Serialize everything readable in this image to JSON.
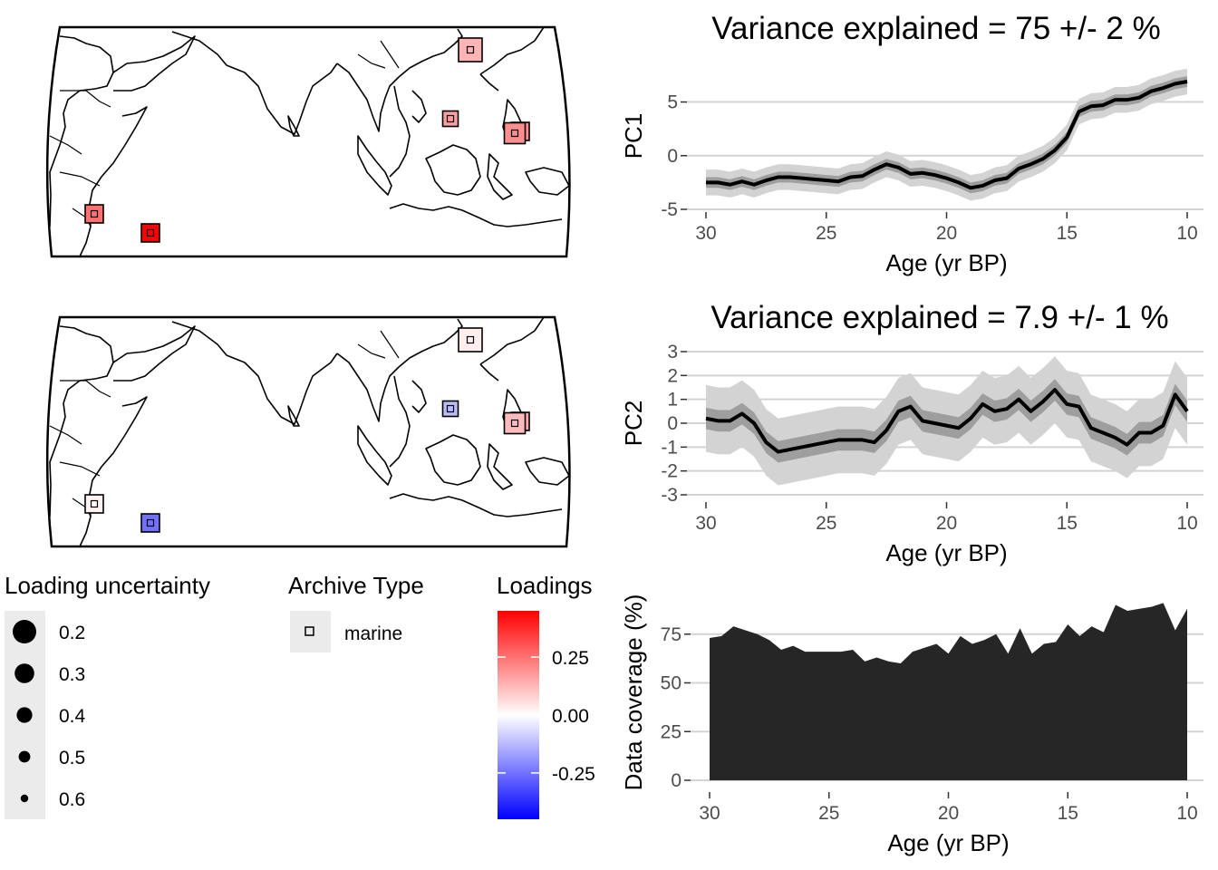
{
  "maps": [
    {
      "name": "pc1-loadings-map"
    },
    {
      "name": "pc2-loadings-map"
    }
  ],
  "chart_data": [
    {
      "type": "area",
      "chart": "pc1",
      "title": "Variance explained = 75 +/- 2 %",
      "xlabel": "Age (yr BP)",
      "ylabel": "PC1",
      "xlim": [
        30,
        10
      ],
      "ylim": [
        -5,
        8
      ],
      "xticks": [
        30,
        25,
        20,
        15,
        10
      ],
      "yticks": [
        -5,
        0,
        5
      ],
      "grid": true,
      "x": [
        30,
        29.5,
        29,
        28.5,
        28,
        27.5,
        27,
        26.5,
        26,
        25.5,
        25,
        24.5,
        24,
        23.5,
        23,
        22.5,
        22,
        21.5,
        21,
        20.5,
        20,
        19.5,
        19,
        18.5,
        18,
        17.5,
        17,
        16.5,
        16,
        15.5,
        15,
        14.5,
        14,
        13.5,
        13,
        12.5,
        12,
        11.5,
        11,
        10.5,
        10
      ],
      "series": [
        {
          "values": [
            -2.5,
            -2.5,
            -2.7,
            -2.4,
            -2.7,
            -2.3,
            -2.0,
            -2.0,
            -2.1,
            -2.2,
            -2.3,
            -2.4,
            -2.0,
            -1.9,
            -1.3,
            -0.8,
            -1.1,
            -1.7,
            -1.6,
            -1.8,
            -2.1,
            -2.5,
            -3.0,
            -2.8,
            -2.3,
            -2.1,
            -1.2,
            -0.8,
            -0.3,
            0.5,
            1.7,
            4.1,
            4.6,
            4.7,
            5.2,
            5.2,
            5.4,
            6.0,
            6.3,
            6.7,
            6.9
          ]
        }
      ],
      "bands": [
        {
          "level": "outer",
          "half_width": 1.2
        },
        {
          "level": "inner",
          "half_width": 0.5
        }
      ]
    },
    {
      "type": "area",
      "chart": "pc2",
      "title": "Variance explained = 7.9 +/- 1 %",
      "xlabel": "Age (yr BP)",
      "ylabel": "PC2",
      "xlim": [
        30,
        10
      ],
      "ylim": [
        -3,
        3
      ],
      "xticks": [
        30,
        25,
        20,
        15,
        10
      ],
      "yticks": [
        -3,
        -2,
        -1,
        0,
        1,
        2,
        3
      ],
      "grid": true,
      "x": [
        30,
        29.5,
        29,
        28.5,
        28,
        27.5,
        27,
        26.5,
        26,
        25.5,
        25,
        24.5,
        24,
        23.5,
        23,
        22.5,
        22,
        21.5,
        21,
        20.5,
        20,
        19.5,
        19,
        18.5,
        18,
        17.5,
        17,
        16.5,
        16,
        15.5,
        15,
        14.5,
        14,
        13.5,
        13,
        12.5,
        12,
        11.5,
        11,
        10.5,
        10
      ],
      "series": [
        {
          "values": [
            0.2,
            0.1,
            0.1,
            0.4,
            0.0,
            -0.8,
            -1.2,
            -1.1,
            -1.0,
            -0.9,
            -0.8,
            -0.7,
            -0.7,
            -0.7,
            -0.8,
            -0.3,
            0.5,
            0.7,
            0.1,
            0.0,
            -0.1,
            -0.2,
            0.2,
            0.8,
            0.5,
            0.6,
            1.0,
            0.5,
            0.9,
            1.4,
            0.8,
            0.7,
            -0.2,
            -0.4,
            -0.6,
            -0.9,
            -0.4,
            -0.4,
            -0.1,
            1.2,
            0.5
          ]
        }
      ],
      "bands": [
        {
          "level": "outer",
          "half_width": 1.4
        },
        {
          "level": "inner",
          "half_width": 0.45
        }
      ]
    },
    {
      "type": "area",
      "chart": "coverage",
      "title": "",
      "xlabel": "Age (yr BP)",
      "ylabel": "Data coverage (%)",
      "xlim": [
        30,
        10
      ],
      "ylim": [
        0,
        100
      ],
      "xticks": [
        30,
        25,
        20,
        15,
        10
      ],
      "yticks": [
        0,
        25,
        50,
        75
      ],
      "grid": true,
      "x": [
        30,
        29.5,
        29,
        28.5,
        28,
        27.5,
        27,
        26.5,
        26,
        25.5,
        25,
        24.5,
        24,
        23.5,
        23,
        22.5,
        22,
        21.5,
        21,
        20.5,
        20,
        19.5,
        19,
        18.5,
        18,
        17.5,
        17,
        16.5,
        16,
        15.5,
        15,
        14.5,
        14,
        13.5,
        13,
        12.5,
        12,
        11.5,
        11,
        10.5,
        10
      ],
      "series": [
        {
          "values": [
            73,
            74,
            79,
            77,
            75,
            72,
            67,
            69,
            66,
            66,
            66,
            66,
            67,
            61,
            63,
            61,
            60,
            66,
            68,
            70,
            65,
            74,
            70,
            72,
            75,
            65,
            78,
            65,
            70,
            71,
            80,
            74,
            79,
            76,
            90,
            87,
            88,
            89,
            91,
            77,
            88
          ]
        }
      ]
    }
  ],
  "legends": {
    "uncertainty": {
      "title": "Loading uncertainty",
      "items": [
        {
          "label": "0.2",
          "size": 0.2
        },
        {
          "label": "0.3",
          "size": 0.3
        },
        {
          "label": "0.4",
          "size": 0.4
        },
        {
          "label": "0.5",
          "size": 0.5
        },
        {
          "label": "0.6",
          "size": 0.6
        }
      ]
    },
    "archive": {
      "title": "Archive Type",
      "items": [
        {
          "label": "marine"
        }
      ]
    },
    "loadings": {
      "title": "Loadings",
      "ticks": [
        {
          "label": "0.25",
          "value": 0.25
        },
        {
          "label": "0.00",
          "value": 0.0
        },
        {
          "label": "-0.25",
          "value": -0.25
        }
      ],
      "range": [
        -0.45,
        0.45
      ],
      "colors": {
        "high": "#ff0000",
        "mid": "#ffffff",
        "low": "#0000ff"
      }
    }
  },
  "sites": [
    {
      "pc1": 0.13,
      "pc2": 0.03,
      "uncertainty": 0.2
    },
    {
      "pc1": 0.17,
      "pc2": -0.12,
      "uncertainty": 0.5
    },
    {
      "pc1": 0.25,
      "pc2": 0.02,
      "uncertainty": 0.4
    },
    {
      "pc1": 0.45,
      "pc2": -0.25,
      "uncertainty": 0.4
    },
    {
      "pc1": 0.2,
      "pc2": 0.15,
      "uncertainty": 0.4
    },
    {
      "pc1": 0.2,
      "pc2": 0.12,
      "uncertainty": 0.3
    }
  ],
  "colors": {
    "inner_band": "#9e9e9e",
    "outer_band": "#d3d3d3",
    "line": "#000000",
    "coverage_fill": "#262626",
    "grid": "#d3d3d3",
    "legend_key_bg": "#ebebeb"
  }
}
